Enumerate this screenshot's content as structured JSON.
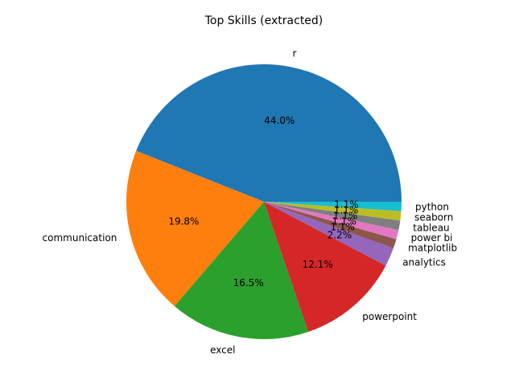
{
  "chart_data": {
    "type": "pie",
    "title": "Top Skills (extracted)",
    "start_angle_deg": 0,
    "direction": "counterclockwise",
    "slices": [
      {
        "label": "r",
        "value": 40,
        "pct_label": "44.0%",
        "color": "#1f77b4"
      },
      {
        "label": "communication",
        "value": 18,
        "pct_label": "19.8%",
        "color": "#ff7f0e"
      },
      {
        "label": "excel",
        "value": 15,
        "pct_label": "16.5%",
        "color": "#2ca02c"
      },
      {
        "label": "powerpoint",
        "value": 11,
        "pct_label": "12.1%",
        "color": "#d62728"
      },
      {
        "label": "analytics",
        "value": 2,
        "pct_label": "2.2%",
        "color": "#9467bd"
      },
      {
        "label": "matplotlib",
        "value": 1,
        "pct_label": "1.1%",
        "color": "#8c564b"
      },
      {
        "label": "power bi",
        "value": 1,
        "pct_label": "1.1%",
        "color": "#e377c2"
      },
      {
        "label": "tableau",
        "value": 1,
        "pct_label": "1.1%",
        "color": "#7f7f7f"
      },
      {
        "label": "seaborn",
        "value": 1,
        "pct_label": "1.1%",
        "color": "#bcbd22"
      },
      {
        "label": "python",
        "value": 1,
        "pct_label": "1.1%",
        "color": "#17becf"
      }
    ]
  }
}
